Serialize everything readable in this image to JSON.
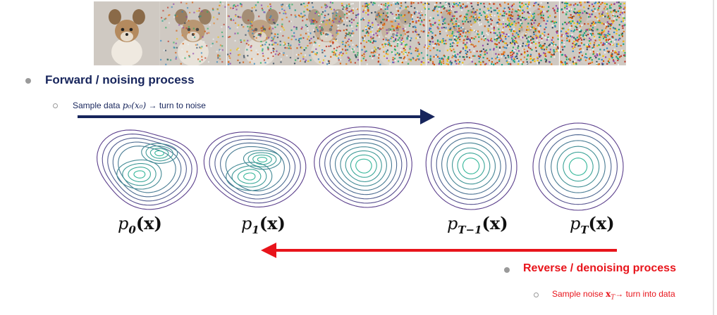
{
  "forward": {
    "heading": "Forward / noising process",
    "sub_text": "Sample data",
    "sub_math": "p₀(x₀)",
    "sub_tail": "→ turn to noise"
  },
  "reverse": {
    "heading": "Reverse / denoising process",
    "sub_text": "Sample noise",
    "sub_math": "x",
    "sub_math_index": "T",
    "sub_tail": "→ turn into data"
  },
  "labels": [
    {
      "base": "p",
      "index": "0",
      "arg": "(x)"
    },
    {
      "base": "p",
      "index": "1",
      "arg": "(x)"
    },
    {
      "base": "p",
      "index": "T−1",
      "arg": "(x)"
    },
    {
      "base": "p",
      "index": "T",
      "arg": "(x)"
    }
  ],
  "colors": {
    "forward": "#17255c",
    "reverse": "#e8141b",
    "contour_outer": "#5b3f8c",
    "contour_inner": "#35b79a"
  },
  "noise_levels": [
    0.0,
    0.25,
    0.45,
    0.62,
    0.78,
    0.9,
    0.97,
    1.0
  ]
}
